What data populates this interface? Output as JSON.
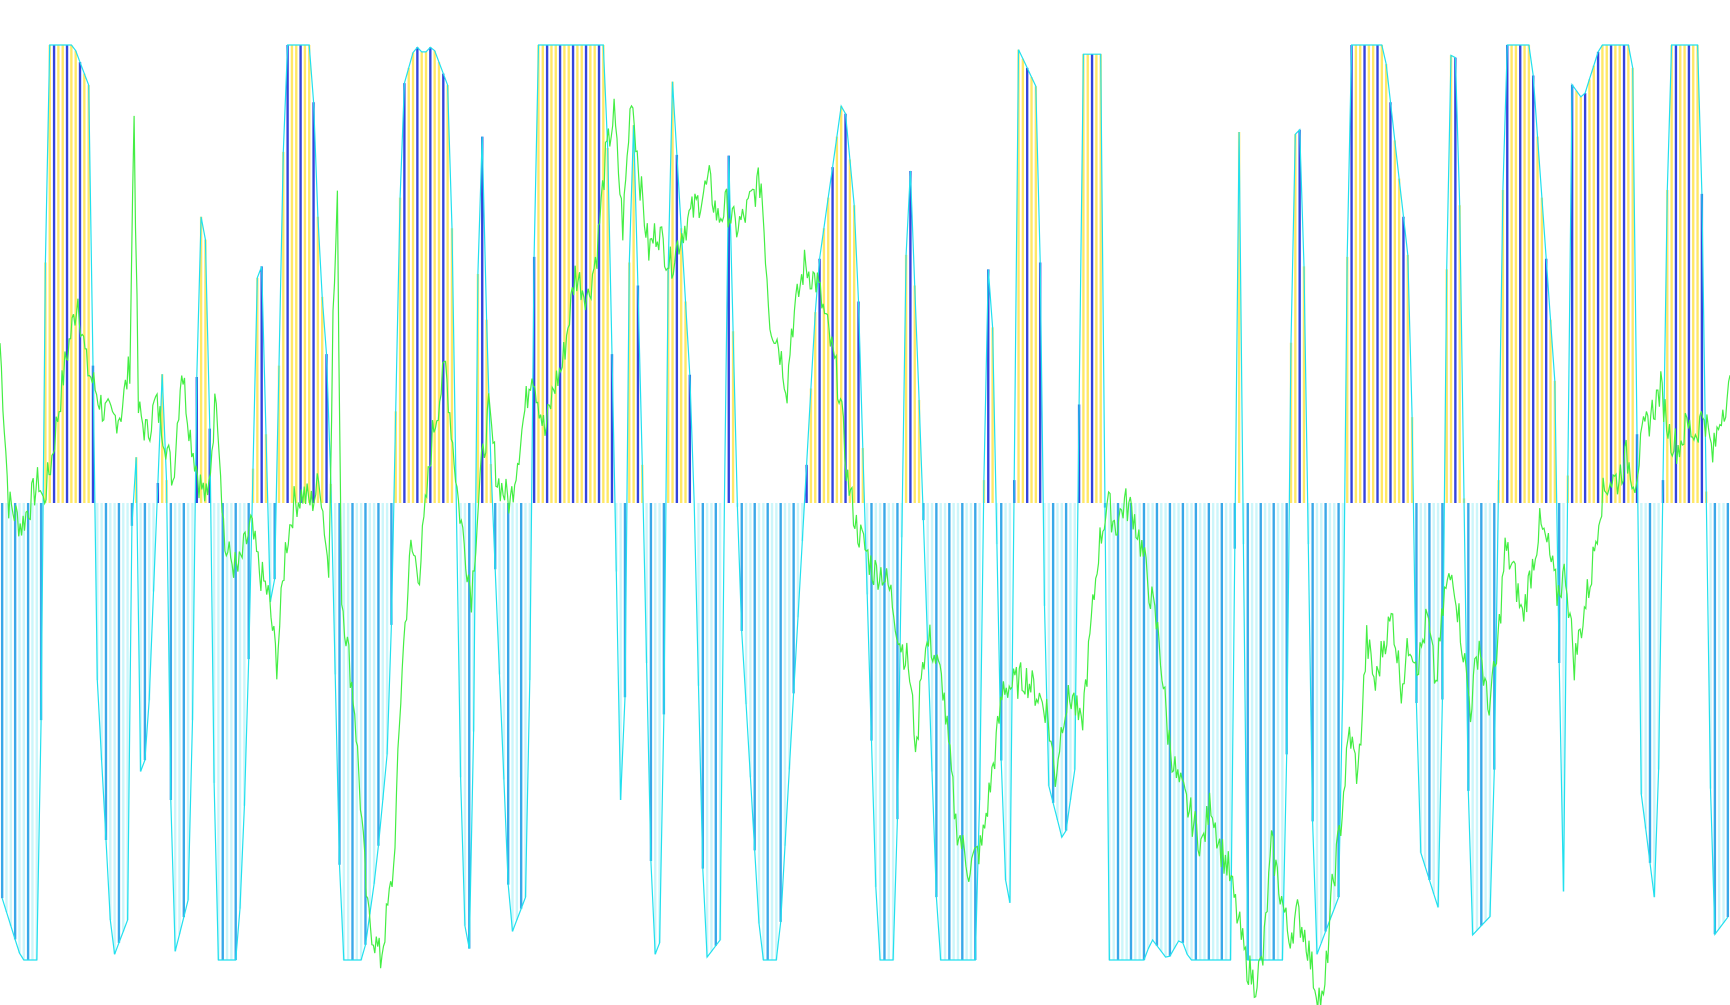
{
  "chart_data": {
    "type": "bar",
    "title": "",
    "xlabel": "",
    "ylabel": "",
    "ylim": [
      -1,
      1
    ],
    "grid": false,
    "legend": "none",
    "baseline": 0,
    "bar_count": 400,
    "colors": {
      "positive_bar_a": "#ffe866",
      "positive_bar_b": "#3344dd",
      "negative_bar_a": "#ccf6fa",
      "negative_bar_b": "#3aa8e8",
      "envelope": "#22e0ee",
      "signal_line": "#44ee44"
    },
    "histogram_keypoints": [
      [
        0,
        -0.85
      ],
      [
        5,
        -1.0
      ],
      [
        9,
        -1.0
      ],
      [
        10,
        0.05
      ],
      [
        11,
        1.0
      ],
      [
        17,
        1.0
      ],
      [
        21,
        0.9
      ],
      [
        22,
        -0.3
      ],
      [
        26,
        -1.0
      ],
      [
        30,
        -0.9
      ],
      [
        31,
        0.8
      ],
      [
        32,
        -0.6
      ],
      [
        34,
        -0.55
      ],
      [
        38,
        0.4
      ],
      [
        40,
        -1.0
      ],
      [
        44,
        -0.85
      ],
      [
        46,
        0.65
      ],
      [
        48,
        0.55
      ],
      [
        50,
        -1.0
      ],
      [
        55,
        -1.0
      ],
      [
        57,
        -0.55
      ],
      [
        60,
        0.7
      ],
      [
        63,
        -0.4
      ],
      [
        66,
        1.0
      ],
      [
        72,
        1.0
      ],
      [
        74,
        0.5
      ],
      [
        75,
        0.4
      ],
      [
        76,
        0.25
      ],
      [
        79,
        -1.0
      ],
      [
        84,
        -1.0
      ],
      [
        87,
        -0.8
      ],
      [
        90,
        -0.5
      ],
      [
        93,
        0.9
      ],
      [
        96,
        1.0
      ],
      [
        98,
        0.98
      ],
      [
        100,
        1.0
      ],
      [
        104,
        0.9
      ],
      [
        107,
        -0.9
      ],
      [
        109,
        -1.0
      ],
      [
        111,
        1.0
      ],
      [
        113,
        0.2
      ],
      [
        118,
        -0.95
      ],
      [
        122,
        -0.85
      ],
      [
        124,
        1.0
      ],
      [
        140,
        1.0
      ],
      [
        142,
        0.1
      ],
      [
        144,
        -0.9
      ],
      [
        146,
        1.0
      ],
      [
        148,
        0.3
      ],
      [
        151,
        -1.0
      ],
      [
        153,
        -0.95
      ],
      [
        155,
        1.0
      ],
      [
        160,
        0.2
      ],
      [
        163,
        -1.0
      ],
      [
        167,
        -0.95
      ],
      [
        168,
        0.95
      ],
      [
        171,
        -0.2
      ],
      [
        176,
        -1.0
      ],
      [
        180,
        -1.0
      ],
      [
        189,
        0.5
      ],
      [
        195,
        0.9
      ],
      [
        198,
        0.6
      ],
      [
        203,
        -1.0
      ],
      [
        207,
        -1.0
      ],
      [
        210,
        0.85
      ],
      [
        213,
        0.1
      ],
      [
        217,
        -1.0
      ],
      [
        226,
        -1.0
      ],
      [
        228,
        0.4
      ],
      [
        229,
        0.62
      ],
      [
        232,
        -0.8
      ],
      [
        234,
        -0.9
      ],
      [
        235,
        1.0
      ],
      [
        240,
        0.9
      ],
      [
        242,
        -0.6
      ],
      [
        246,
        -0.75
      ],
      [
        249,
        -0.55
      ],
      [
        250,
        0.98
      ],
      [
        255,
        0.98
      ],
      [
        256,
        -1.0
      ],
      [
        265,
        -1.0
      ],
      [
        266,
        -0.95
      ],
      [
        270,
        -1.0
      ],
      [
        273,
        -0.95
      ],
      [
        275,
        -1.0
      ],
      [
        285,
        -1.0
      ],
      [
        286,
        0.8
      ],
      [
        287,
        0.82
      ],
      [
        288,
        -1.0
      ],
      [
        297,
        -1.0
      ],
      [
        299,
        0.8
      ],
      [
        301,
        0.82
      ],
      [
        304,
        -1.0
      ],
      [
        310,
        -0.85
      ],
      [
        312,
        1.0
      ],
      [
        317,
        1.0
      ],
      [
        320,
        1.0
      ],
      [
        326,
        0.5
      ],
      [
        328,
        -0.75
      ],
      [
        333,
        -0.9
      ],
      [
        335,
        0.98
      ],
      [
        337,
        0.97
      ],
      [
        340,
        -0.95
      ],
      [
        345,
        -0.9
      ],
      [
        348,
        1.0
      ],
      [
        354,
        1.0
      ],
      [
        360,
        0.2
      ],
      [
        361,
        -0.9
      ],
      [
        362,
        -0.8
      ],
      [
        363,
        0.92
      ],
      [
        366,
        0.88
      ],
      [
        370,
        1.0
      ],
      [
        377,
        1.0
      ],
      [
        378,
        0.9
      ],
      [
        379,
        -0.6
      ],
      [
        383,
        -0.9
      ],
      [
        386,
        1.0
      ],
      [
        393,
        1.0
      ],
      [
        396,
        -0.95
      ],
      [
        400,
        -0.9
      ]
    ],
    "signal_keypoints": [
      [
        0,
        0.35
      ],
      [
        2,
        0.0
      ],
      [
        5,
        -0.05
      ],
      [
        9,
        0.05
      ],
      [
        10,
        0.0
      ],
      [
        12,
        0.1
      ],
      [
        15,
        0.3
      ],
      [
        18,
        0.45
      ],
      [
        20,
        0.3
      ],
      [
        22,
        0.25
      ],
      [
        24,
        0.2
      ],
      [
        26,
        0.18
      ],
      [
        28,
        0.2
      ],
      [
        30,
        0.3
      ],
      [
        31,
        0.85
      ],
      [
        32,
        0.2
      ],
      [
        34,
        0.15
      ],
      [
        36,
        0.22
      ],
      [
        38,
        0.15
      ],
      [
        40,
        0.05
      ],
      [
        42,
        0.3
      ],
      [
        44,
        0.15
      ],
      [
        46,
        0.05
      ],
      [
        48,
        0.0
      ],
      [
        50,
        0.25
      ],
      [
        52,
        -0.1
      ],
      [
        55,
        -0.15
      ],
      [
        58,
        -0.05
      ],
      [
        60,
        -0.15
      ],
      [
        62,
        -0.2
      ],
      [
        64,
        -0.35
      ],
      [
        66,
        -0.1
      ],
      [
        68,
        0.0
      ],
      [
        70,
        0.02
      ],
      [
        72,
        0.0
      ],
      [
        74,
        0.05
      ],
      [
        76,
        -0.15
      ],
      [
        77,
        0.4
      ],
      [
        78,
        0.65
      ],
      [
        79,
        -0.2
      ],
      [
        82,
        -0.45
      ],
      [
        85,
        -0.9
      ],
      [
        88,
        -1.0
      ],
      [
        91,
        -0.8
      ],
      [
        93,
        -0.35
      ],
      [
        95,
        -0.1
      ],
      [
        97,
        -0.15
      ],
      [
        99,
        0.05
      ],
      [
        100,
        0.15
      ],
      [
        103,
        0.3
      ],
      [
        106,
        0.0
      ],
      [
        109,
        -0.2
      ],
      [
        111,
        0.05
      ],
      [
        113,
        0.2
      ],
      [
        115,
        0.05
      ],
      [
        118,
        0.0
      ],
      [
        120,
        0.12
      ],
      [
        123,
        0.3
      ],
      [
        126,
        0.15
      ],
      [
        128,
        0.25
      ],
      [
        130,
        0.3
      ],
      [
        133,
        0.5
      ],
      [
        136,
        0.45
      ],
      [
        138,
        0.55
      ],
      [
        140,
        0.75
      ],
      [
        142,
        0.85
      ],
      [
        144,
        0.6
      ],
      [
        146,
        0.9
      ],
      [
        148,
        0.7
      ],
      [
        150,
        0.55
      ],
      [
        152,
        0.6
      ],
      [
        155,
        0.52
      ],
      [
        158,
        0.6
      ],
      [
        161,
        0.65
      ],
      [
        164,
        0.7
      ],
      [
        166,
        0.62
      ],
      [
        168,
        0.65
      ],
      [
        170,
        0.6
      ],
      [
        172,
        0.62
      ],
      [
        174,
        0.67
      ],
      [
        175,
        0.69
      ],
      [
        176,
        0.7
      ],
      [
        178,
        0.4
      ],
      [
        180,
        0.35
      ],
      [
        182,
        0.25
      ],
      [
        183,
        0.38
      ],
      [
        186,
        0.52
      ],
      [
        189,
        0.48
      ],
      [
        192,
        0.35
      ],
      [
        194,
        0.25
      ],
      [
        196,
        0.05
      ],
      [
        198,
        -0.05
      ],
      [
        200,
        -0.1
      ],
      [
        202,
        -0.15
      ],
      [
        204,
        -0.15
      ],
      [
        206,
        -0.2
      ],
      [
        208,
        -0.3
      ],
      [
        210,
        -0.35
      ],
      [
        212,
        -0.55
      ],
      [
        213,
        -0.35
      ],
      [
        215,
        -0.3
      ],
      [
        218,
        -0.4
      ],
      [
        221,
        -0.7
      ],
      [
        224,
        -0.8
      ],
      [
        227,
        -0.75
      ],
      [
        230,
        -0.55
      ],
      [
        232,
        -0.4
      ],
      [
        234,
        -0.4
      ],
      [
        237,
        -0.38
      ],
      [
        240,
        -0.42
      ],
      [
        242,
        -0.45
      ],
      [
        244,
        -0.6
      ],
      [
        246,
        -0.45
      ],
      [
        248,
        -0.42
      ],
      [
        250,
        -0.5
      ],
      [
        252,
        -0.3
      ],
      [
        254,
        -0.1
      ],
      [
        256,
        0.0
      ],
      [
        258,
        -0.05
      ],
      [
        260,
        0.0
      ],
      [
        262,
        -0.02
      ],
      [
        264,
        -0.1
      ],
      [
        266,
        -0.2
      ],
      [
        268,
        -0.3
      ],
      [
        270,
        -0.5
      ],
      [
        272,
        -0.6
      ],
      [
        274,
        -0.65
      ],
      [
        276,
        -0.7
      ],
      [
        278,
        -0.75
      ],
      [
        280,
        -0.65
      ],
      [
        282,
        -0.75
      ],
      [
        284,
        -0.8
      ],
      [
        286,
        -0.9
      ],
      [
        288,
        -1.0
      ],
      [
        290,
        -1.05
      ],
      [
        292,
        -1.0
      ],
      [
        294,
        -0.75
      ],
      [
        296,
        -0.85
      ],
      [
        298,
        -0.95
      ],
      [
        300,
        -0.9
      ],
      [
        302,
        -0.95
      ],
      [
        304,
        -1.05
      ],
      [
        306,
        -1.1
      ],
      [
        308,
        -0.85
      ],
      [
        310,
        -0.7
      ],
      [
        312,
        -0.5
      ],
      [
        314,
        -0.6
      ],
      [
        316,
        -0.3
      ],
      [
        318,
        -0.4
      ],
      [
        320,
        -0.3
      ],
      [
        322,
        -0.25
      ],
      [
        324,
        -0.4
      ],
      [
        326,
        -0.3
      ],
      [
        328,
        -0.35
      ],
      [
        330,
        -0.25
      ],
      [
        332,
        -0.4
      ],
      [
        334,
        -0.2
      ],
      [
        336,
        -0.15
      ],
      [
        338,
        -0.3
      ],
      [
        340,
        -0.45
      ],
      [
        342,
        -0.3
      ],
      [
        344,
        -0.45
      ],
      [
        346,
        -0.35
      ],
      [
        348,
        -0.1
      ],
      [
        350,
        -0.15
      ],
      [
        352,
        -0.25
      ],
      [
        354,
        -0.15
      ],
      [
        356,
        -0.05
      ],
      [
        358,
        -0.1
      ],
      [
        360,
        -0.2
      ],
      [
        362,
        -0.15
      ],
      [
        364,
        -0.35
      ],
      [
        366,
        -0.25
      ],
      [
        368,
        -0.15
      ],
      [
        370,
        0.0
      ],
      [
        372,
        0.05
      ],
      [
        374,
        0.05
      ],
      [
        376,
        0.1
      ],
      [
        378,
        0.05
      ],
      [
        380,
        0.15
      ],
      [
        382,
        0.2
      ],
      [
        384,
        0.25
      ],
      [
        386,
        0.15
      ],
      [
        388,
        0.12
      ],
      [
        390,
        0.17
      ],
      [
        392,
        0.15
      ],
      [
        394,
        0.2
      ],
      [
        396,
        0.1
      ],
      [
        398,
        0.2
      ],
      [
        400,
        0.25
      ]
    ]
  }
}
